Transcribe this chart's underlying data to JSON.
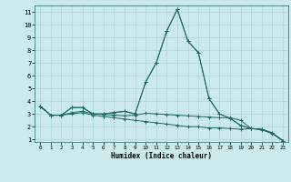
{
  "xlabel": "Humidex (Indice chaleur)",
  "background_color": "#cce9ed",
  "line_color": "#1a6b60",
  "grid_color": "#aad4d8",
  "xlim": [
    -0.5,
    23.5
  ],
  "ylim": [
    0.8,
    11.5
  ],
  "yticks": [
    1,
    2,
    3,
    4,
    5,
    6,
    7,
    8,
    9,
    10,
    11
  ],
  "xticks": [
    0,
    1,
    2,
    3,
    4,
    5,
    6,
    7,
    8,
    9,
    10,
    11,
    12,
    13,
    14,
    15,
    16,
    17,
    18,
    19,
    20,
    21,
    22,
    23
  ],
  "series": [
    {
      "x": [
        0,
        1,
        2,
        3,
        4,
        5,
        6,
        7,
        8,
        9,
        10,
        11,
        12,
        13,
        14,
        15,
        16,
        17,
        18,
        19,
        20,
        21,
        22,
        23
      ],
      "y": [
        3.6,
        2.9,
        2.9,
        3.5,
        3.5,
        3.0,
        3.0,
        3.1,
        3.2,
        3.0,
        5.5,
        7.0,
        9.5,
        11.2,
        8.7,
        7.8,
        4.2,
        3.0,
        2.65,
        2.1,
        1.85,
        1.8,
        1.5,
        0.9
      ]
    },
    {
      "x": [
        0,
        1,
        2,
        3,
        4,
        5,
        6,
        7,
        8,
        9,
        10,
        11,
        12,
        13,
        14,
        15,
        16,
        17,
        18,
        19,
        20,
        21,
        22,
        23
      ],
      "y": [
        3.6,
        2.9,
        2.9,
        3.5,
        3.5,
        3.0,
        3.0,
        3.1,
        3.2,
        3.0,
        5.5,
        7.0,
        9.5,
        11.2,
        8.7,
        7.8,
        4.2,
        3.0,
        2.65,
        2.1,
        1.85,
        1.8,
        1.5,
        0.9
      ]
    },
    {
      "x": [
        0,
        1,
        2,
        3,
        4,
        5,
        6,
        7,
        8,
        9,
        10,
        11,
        12,
        13,
        14,
        15,
        16,
        17,
        18,
        19,
        20,
        21,
        22,
        23
      ],
      "y": [
        3.6,
        2.9,
        2.9,
        3.1,
        3.2,
        3.0,
        2.95,
        2.9,
        2.85,
        2.9,
        3.05,
        3.0,
        2.95,
        2.9,
        2.85,
        2.8,
        2.75,
        2.7,
        2.7,
        2.5,
        1.85,
        1.8,
        1.5,
        0.9
      ]
    },
    {
      "x": [
        0,
        1,
        2,
        3,
        4,
        5,
        6,
        7,
        8,
        9,
        10,
        11,
        12,
        13,
        14,
        15,
        16,
        17,
        18,
        19,
        20,
        21,
        22,
        23
      ],
      "y": [
        3.6,
        2.9,
        2.9,
        3.0,
        3.1,
        2.9,
        2.8,
        2.7,
        2.6,
        2.5,
        2.4,
        2.3,
        2.2,
        2.1,
        2.0,
        2.0,
        1.9,
        1.9,
        1.85,
        1.8,
        1.85,
        1.75,
        1.45,
        0.9
      ]
    }
  ]
}
